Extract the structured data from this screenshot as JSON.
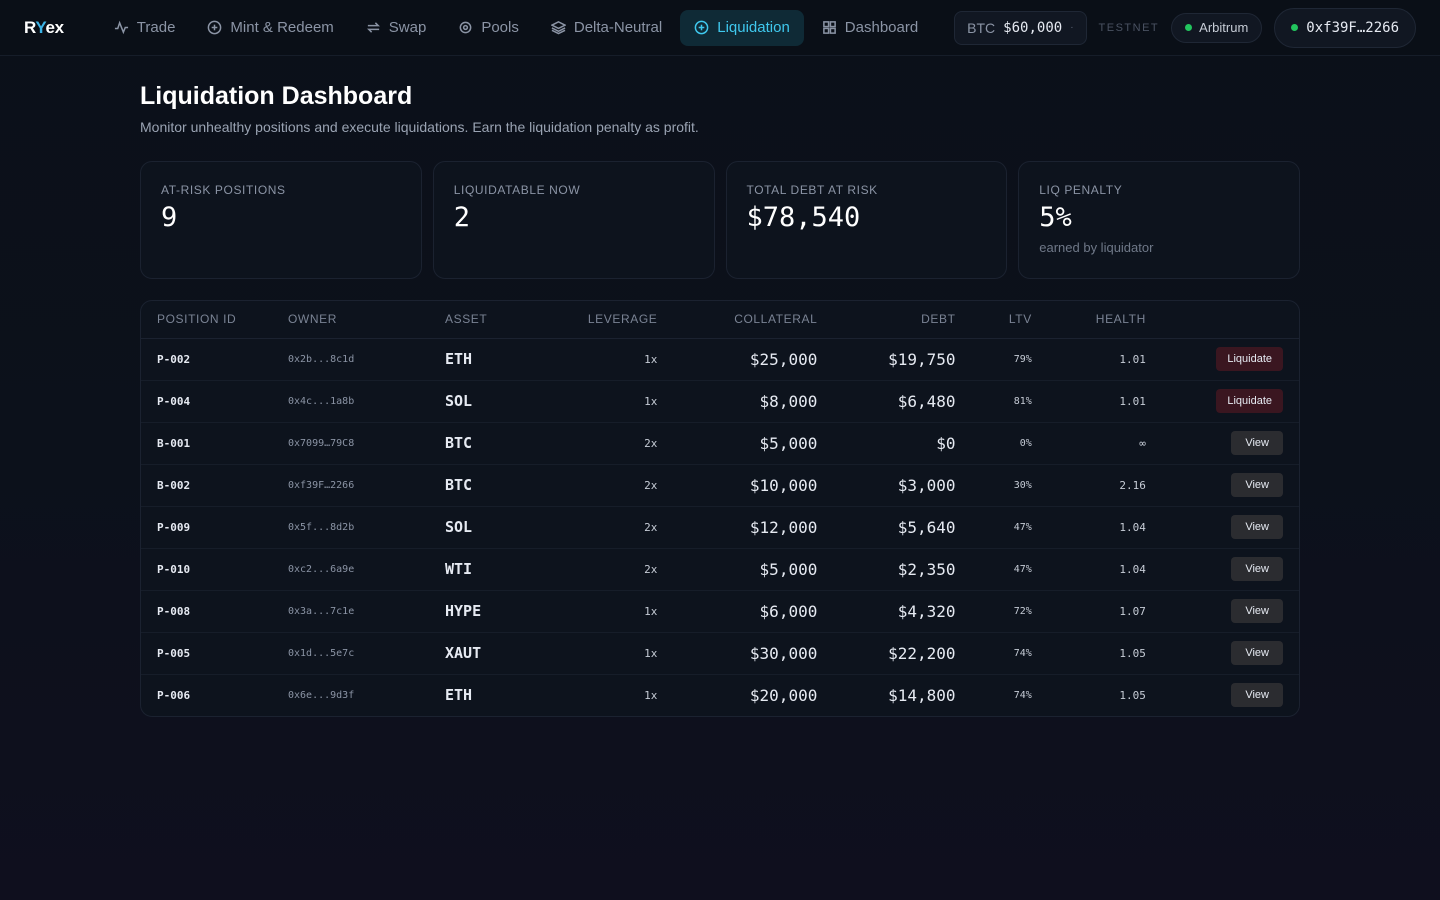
{
  "brand": {
    "name_r": "R",
    "name_y": "Y",
    "name_ex": "ex"
  },
  "nav": [
    {
      "label": "Trade",
      "icon": "activity-icon",
      "active": false
    },
    {
      "label": "Mint & Redeem",
      "icon": "plus-circle-icon",
      "active": false
    },
    {
      "label": "Swap",
      "icon": "swap-icon",
      "active": false
    },
    {
      "label": "Pools",
      "icon": "target-icon",
      "active": false
    },
    {
      "label": "Delta-Neutral",
      "icon": "layers-icon",
      "active": false
    },
    {
      "label": "Liquidation",
      "icon": "plus-circle-icon",
      "active": true
    },
    {
      "label": "Dashboard",
      "icon": "grid-icon",
      "active": false
    }
  ],
  "header": {
    "price_symbol": "BTC",
    "price_value": "$60,000",
    "price_sep": "·",
    "testnet": "TESTNET",
    "chain": "Arbitrum",
    "wallet": "0xf39F…2266"
  },
  "page": {
    "title": "Liquidation Dashboard",
    "subtitle": "Monitor unhealthy positions and execute liquidations. Earn the liquidation penalty as profit."
  },
  "stats": [
    {
      "label": "AT-RISK POSITIONS",
      "value": "9",
      "foot": ""
    },
    {
      "label": "LIQUIDATABLE NOW",
      "value": "2",
      "foot": ""
    },
    {
      "label": "TOTAL DEBT AT RISK",
      "value": "$78,540",
      "foot": ""
    },
    {
      "label": "LIQ PENALTY",
      "value": "5%",
      "foot": "earned by liquidator"
    }
  ],
  "table": {
    "columns": [
      "POSITION ID",
      "OWNER",
      "ASSET",
      "LEVERAGE",
      "COLLATERAL",
      "DEBT",
      "LTV",
      "HEALTH",
      ""
    ],
    "rows": [
      {
        "id": "P-002",
        "owner": "0x2b...8c1d",
        "asset": "ETH",
        "leverage": "1x",
        "collateral": "$25,000",
        "debt": "$19,750",
        "ltv": "79%",
        "health": "1.01",
        "action": "Liquidate"
      },
      {
        "id": "P-004",
        "owner": "0x4c...1a8b",
        "asset": "SOL",
        "leverage": "1x",
        "collateral": "$8,000",
        "debt": "$6,480",
        "ltv": "81%",
        "health": "1.01",
        "action": "Liquidate"
      },
      {
        "id": "B-001",
        "owner": "0x7099…79C8",
        "asset": "BTC",
        "leverage": "2x",
        "collateral": "$5,000",
        "debt": "$0",
        "ltv": "0%",
        "health": "∞",
        "action": "View"
      },
      {
        "id": "B-002",
        "owner": "0xf39F…2266",
        "asset": "BTC",
        "leverage": "2x",
        "collateral": "$10,000",
        "debt": "$3,000",
        "ltv": "30%",
        "health": "2.16",
        "action": "View"
      },
      {
        "id": "P-009",
        "owner": "0x5f...8d2b",
        "asset": "SOL",
        "leverage": "2x",
        "collateral": "$12,000",
        "debt": "$5,640",
        "ltv": "47%",
        "health": "1.04",
        "action": "View"
      },
      {
        "id": "P-010",
        "owner": "0xc2...6a9e",
        "asset": "WTI",
        "leverage": "2x",
        "collateral": "$5,000",
        "debt": "$2,350",
        "ltv": "47%",
        "health": "1.04",
        "action": "View"
      },
      {
        "id": "P-008",
        "owner": "0x3a...7c1e",
        "asset": "HYPE",
        "leverage": "1x",
        "collateral": "$6,000",
        "debt": "$4,320",
        "ltv": "72%",
        "health": "1.07",
        "action": "View"
      },
      {
        "id": "P-005",
        "owner": "0x1d...5e7c",
        "asset": "XAUT",
        "leverage": "1x",
        "collateral": "$30,000",
        "debt": "$22,200",
        "ltv": "74%",
        "health": "1.05",
        "action": "View"
      },
      {
        "id": "P-006",
        "owner": "0x6e...9d3f",
        "asset": "ETH",
        "leverage": "1x",
        "collateral": "$20,000",
        "debt": "$14,800",
        "ltv": "74%",
        "health": "1.05",
        "action": "View"
      }
    ]
  },
  "colors": {
    "accent": "#3fc8ee",
    "liquidate_bg": "#3a1620",
    "view_bg": "#2b2c30",
    "online": "#22c55e"
  }
}
